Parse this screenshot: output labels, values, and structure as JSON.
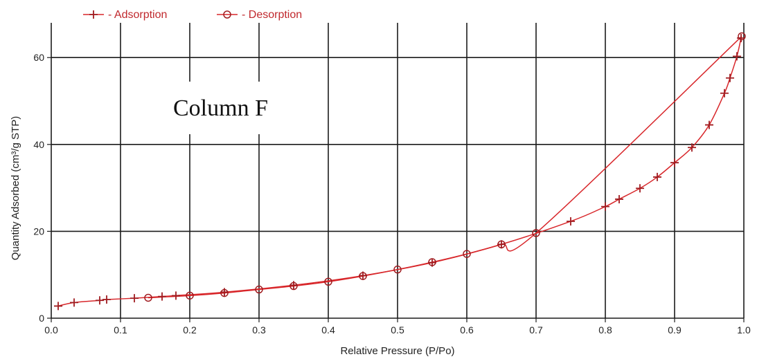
{
  "chart_data": {
    "type": "line",
    "title": "",
    "xlabel": "Relative Pressure (P/Po)",
    "ylabel": "Quantity Adsorbed (cm³/g STP)",
    "xlim": [
      0.0,
      1.0
    ],
    "ylim": [
      0,
      68
    ],
    "x_ticks": [
      "0.0",
      "0.1",
      "0.2",
      "0.3",
      "0.4",
      "0.5",
      "0.6",
      "0.7",
      "0.8",
      "0.9",
      "1.0"
    ],
    "x_tick_values": [
      0.0,
      0.1,
      0.2,
      0.3,
      0.4,
      0.5,
      0.6,
      0.7,
      0.8,
      0.9,
      1.0
    ],
    "y_ticks": [
      "0",
      "20",
      "40",
      "60"
    ],
    "y_tick_values": [
      0,
      20,
      40,
      60
    ],
    "grid": true,
    "legend_position": "top-left",
    "annotation": "Column F",
    "line_color": "#d8262a",
    "marker_color": "#a01c20",
    "series": [
      {
        "name": "- Adsorption",
        "marker": "plus",
        "x": [
          0.01,
          0.033,
          0.07,
          0.08,
          0.12,
          0.16,
          0.18,
          0.25,
          0.35,
          0.45,
          0.55,
          0.65,
          0.75,
          0.8,
          0.82,
          0.85,
          0.875,
          0.9,
          0.925,
          0.95,
          0.972,
          0.98,
          0.99,
          0.996
        ],
        "y": [
          2.8,
          3.6,
          4.1,
          4.3,
          4.6,
          5.0,
          5.2,
          6.0,
          7.6,
          9.8,
          12.8,
          17.0,
          22.3,
          25.7,
          27.4,
          29.9,
          32.5,
          35.8,
          39.3,
          44.5,
          51.8,
          55.3,
          60.3,
          64.5
        ]
      },
      {
        "name": "- Desorption",
        "marker": "circle",
        "x": [
          0.997,
          0.7,
          0.65,
          0.6,
          0.55,
          0.5,
          0.45,
          0.4,
          0.35,
          0.3,
          0.25,
          0.2,
          0.14
        ],
        "y": [
          64.9,
          19.6,
          17.0,
          14.8,
          12.9,
          11.2,
          9.7,
          8.4,
          7.4,
          6.6,
          5.8,
          5.2,
          4.7
        ]
      }
    ]
  }
}
